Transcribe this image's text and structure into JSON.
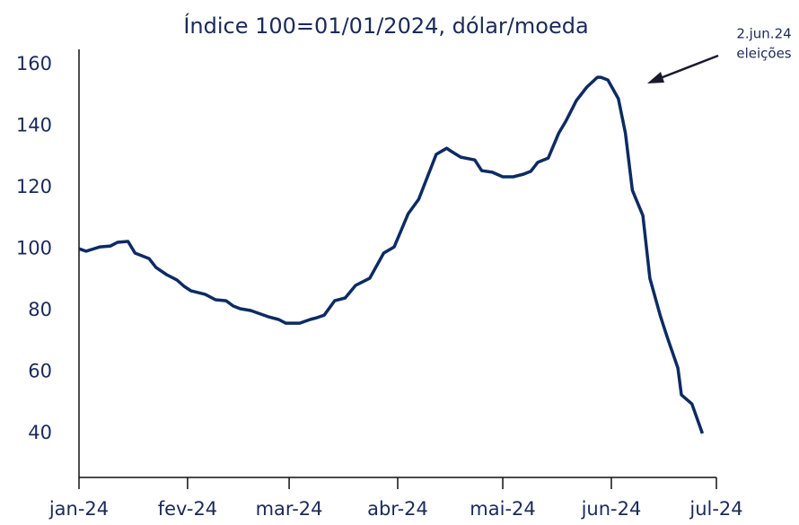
{
  "chart_data": {
    "type": "line",
    "title": "Índice 100=01/01/2024,  dólar/moeda",
    "annotation": {
      "date": "2.jun.24",
      "text": "eleições"
    },
    "x": [
      0,
      2,
      4,
      6,
      9,
      11,
      14,
      16,
      20,
      22,
      25,
      28,
      30,
      32,
      36,
      39,
      42,
      44,
      46,
      49,
      52,
      54,
      57,
      59,
      63,
      66,
      68,
      70,
      73,
      76,
      79,
      83,
      87,
      90,
      94,
      97,
      102,
      105,
      106,
      109,
      113,
      115,
      118,
      121,
      124,
      127,
      129,
      131,
      134,
      137,
      139,
      142,
      145,
      148,
      149,
      151,
      154,
      156,
      158,
      161,
      163,
      166,
      168,
      171,
      172,
      175,
      178
    ],
    "values": [
      100.1,
      99.3,
      100,
      100.7,
      101,
      102.2,
      102.5,
      98.7,
      96.9,
      94,
      91.7,
      89.9,
      87.9,
      86.4,
      85.3,
      83.5,
      83.2,
      81.5,
      80.6,
      80,
      78.8,
      78,
      77.1,
      75.9,
      75.9,
      77.1,
      77.7,
      78.5,
      83.2,
      84.1,
      88.2,
      90.5,
      98.7,
      100.7,
      111.5,
      116.2,
      130.8,
      132.8,
      132,
      129.9,
      129,
      125.5,
      125,
      123.5,
      123.5,
      124.4,
      125.3,
      128.2,
      129.6,
      137.8,
      141.6,
      148.3,
      152.7,
      155.9,
      155.9,
      155,
      148.9,
      137.8,
      119.1,
      110.9,
      90.5,
      78.2,
      71.2,
      61.3,
      52.6,
      49.6,
      40
    ],
    "color": "#0d2b63",
    "xlim": [
      0,
      182
    ],
    "xticks": [
      {
        "value": 0,
        "label": "jan-24"
      },
      {
        "value": 31,
        "label": "fev-24"
      },
      {
        "value": 60,
        "label": "mar-24"
      },
      {
        "value": 91,
        "label": "abr-24"
      },
      {
        "value": 121,
        "label": "mai-24"
      },
      {
        "value": 152,
        "label": "jun-24"
      },
      {
        "value": 182,
        "label": "jul-24"
      }
    ],
    "ylim": [
      25,
      165
    ],
    "yticks": [
      40,
      60,
      80,
      100,
      120,
      140,
      160
    ],
    "grid": false
  }
}
